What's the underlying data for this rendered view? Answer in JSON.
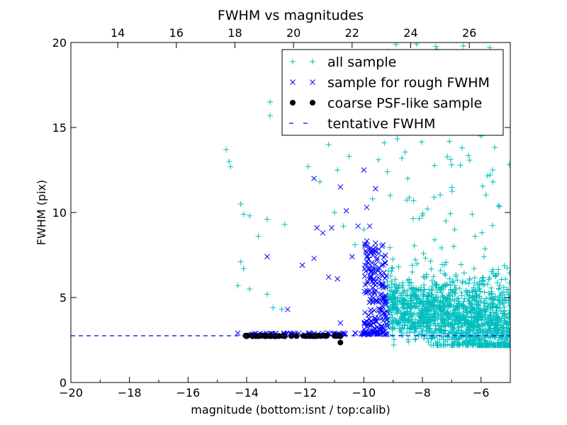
{
  "chart_data": {
    "type": "scatter",
    "title": "FWHM vs magnitudes",
    "xlabel": "magnitude (bottom:isnt / top:calib)",
    "ylabel": "FWHM (pix)",
    "xlim": [
      -20,
      -5
    ],
    "ylim": [
      0,
      20
    ],
    "x_ticks": [
      -20,
      -18,
      -16,
      -14,
      -12,
      -10,
      -8,
      -6
    ],
    "x_tick_labels": [
      "−20",
      "−18",
      "−16",
      "−14",
      "−12",
      "−10",
      "−8",
      "−6"
    ],
    "y_ticks": [
      0,
      5,
      10,
      15,
      20
    ],
    "y_tick_labels": [
      "0",
      "5",
      "10",
      "15",
      "20"
    ],
    "top_xlim": [
      12.4,
      27.4
    ],
    "top_ticks": [
      14,
      16,
      18,
      20,
      22,
      24,
      26
    ],
    "top_tick_labels": [
      "14",
      "16",
      "18",
      "20",
      "22",
      "24",
      "26"
    ],
    "grid": false,
    "legend_position": "top-right",
    "tentative_fwhm": 2.75,
    "series": [
      {
        "name": "all sample",
        "marker": "plus",
        "color": "#00bfbf",
        "sample_points": [
          [
            -14.7,
            13.7
          ],
          [
            -14.6,
            13.0
          ],
          [
            -14.55,
            12.7
          ],
          [
            -13.2,
            16.5
          ],
          [
            -13.2,
            15.7
          ],
          [
            -14.2,
            10.5
          ],
          [
            -14.1,
            9.9
          ],
          [
            -13.9,
            9.8
          ],
          [
            -13.6,
            8.6
          ],
          [
            -13.3,
            9.6
          ],
          [
            -12.7,
            9.3
          ],
          [
            -14.2,
            7.1
          ],
          [
            -14.1,
            6.7
          ],
          [
            -14.3,
            5.7
          ],
          [
            -13.9,
            5.5
          ],
          [
            -13.3,
            5.2
          ],
          [
            -13.1,
            4.4
          ],
          [
            -12.8,
            4.3
          ],
          [
            -11.9,
            12.7
          ],
          [
            -11.5,
            11.8
          ],
          [
            -11.2,
            14.0
          ],
          [
            -10.9,
            12.5
          ],
          [
            -10.5,
            13.3
          ],
          [
            -11.0,
            10.0
          ],
          [
            -10.7,
            9.2
          ],
          [
            -10.3,
            8.1
          ],
          [
            -10.0,
            9.0
          ],
          [
            -9.8,
            14.8
          ],
          [
            -9.7,
            10.8
          ],
          [
            -9.5,
            13.1
          ],
          [
            -9.3,
            14.1
          ],
          [
            -9.2,
            12.4
          ],
          [
            -9.1,
            11.0
          ],
          [
            -8.7,
            13.2
          ],
          [
            -8.5,
            12.0
          ],
          [
            -8.3,
            10.7
          ],
          [
            -8.0,
            9.8
          ],
          [
            -7.6,
            10.9
          ],
          [
            -7.2,
            9.5
          ],
          [
            -6.9,
            9.0
          ],
          [
            -6.3,
            9.9
          ],
          [
            -5.9,
            7.4
          ],
          [
            -5.6,
            12.5
          ],
          [
            -6.0,
            14.5
          ],
          [
            -7.0,
            12.8
          ],
          [
            -8.0,
            14.8
          ],
          [
            -7.5,
            19.6
          ],
          [
            -8.2,
            19.9
          ],
          [
            -6.6,
            19.8
          ],
          [
            -6.1,
            18.6
          ],
          [
            -8.9,
            19.9
          ],
          [
            -5.7,
            19.7
          ]
        ]
      },
      {
        "name": "sample for rough FWHM",
        "marker": "x",
        "color": "#0000ff",
        "sample_points": [
          [
            -14.3,
            2.9
          ],
          [
            -13.3,
            7.4
          ],
          [
            -12.6,
            4.3
          ],
          [
            -12.1,
            6.9
          ],
          [
            -11.7,
            7.3
          ],
          [
            -11.7,
            12.0
          ],
          [
            -11.6,
            9.1
          ],
          [
            -11.4,
            8.8
          ],
          [
            -11.1,
            9.1
          ],
          [
            -10.8,
            11.5
          ],
          [
            -10.6,
            10.1
          ],
          [
            -10.4,
            7.4
          ],
          [
            -10.2,
            9.2
          ],
          [
            -10.0,
            12.5
          ],
          [
            -9.9,
            10.3
          ],
          [
            -9.6,
            11.4
          ],
          [
            -9.8,
            9.2
          ],
          [
            -9.9,
            7.1
          ],
          [
            -9.6,
            8.2
          ],
          [
            -9.5,
            6.6
          ],
          [
            -9.4,
            5.2
          ],
          [
            -9.3,
            4.1
          ],
          [
            -10.9,
            6.1
          ],
          [
            -11.2,
            6.2
          ],
          [
            -10.8,
            3.5
          ],
          [
            -9.7,
            4.7
          ],
          [
            -9.5,
            3.8
          ],
          [
            -12.0,
            2.8
          ],
          [
            -10.0,
            2.8
          ],
          [
            -9.2,
            3.3
          ]
        ]
      },
      {
        "name": "coarse PSF-like sample",
        "marker": "circle",
        "color": "#000000",
        "sample_points": [
          [
            -14.0,
            2.72
          ],
          [
            -13.8,
            2.72
          ],
          [
            -13.6,
            2.73
          ],
          [
            -13.3,
            2.73
          ],
          [
            -13.0,
            2.72
          ],
          [
            -12.7,
            2.72
          ],
          [
            -12.3,
            2.73
          ],
          [
            -12.0,
            2.74
          ],
          [
            -11.7,
            2.72
          ],
          [
            -11.3,
            2.73
          ],
          [
            -11.0,
            2.74
          ],
          [
            -10.8,
            2.72
          ],
          [
            -10.8,
            2.35
          ]
        ]
      },
      {
        "name": "tentative FWHM",
        "marker": "dashed-line",
        "color": "#0000ff"
      }
    ]
  }
}
